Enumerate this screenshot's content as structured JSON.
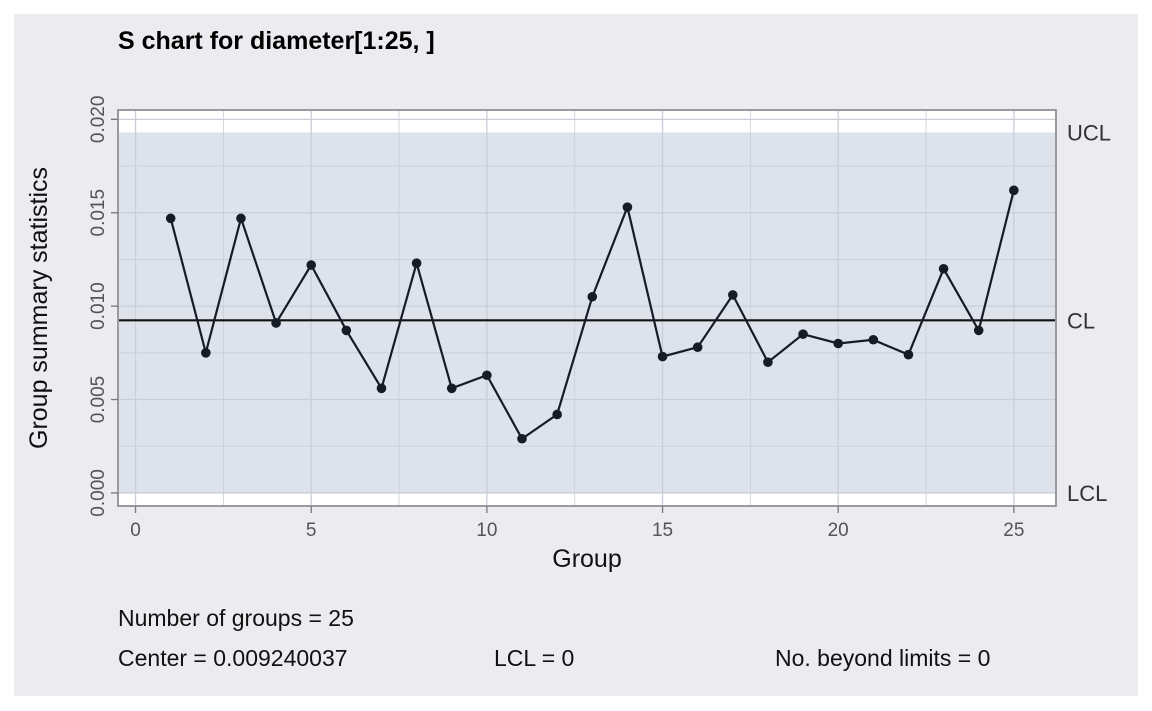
{
  "chart_data": {
    "type": "line",
    "title": "S chart for diameter[1:25, ]",
    "xlabel": "Group",
    "ylabel": "Group summary statistics",
    "xlim": [
      -0.5,
      26.2
    ],
    "ylim": [
      -0.0007,
      0.0205
    ],
    "x_ticks": [
      0,
      5,
      10,
      15,
      20,
      25
    ],
    "x_tick_labels": [
      "0",
      "5",
      "10",
      "15",
      "20",
      "25"
    ],
    "y_ticks": [
      0.0,
      0.005,
      0.01,
      0.015,
      0.02
    ],
    "y_tick_labels": [
      "0.000",
      "0.005",
      "0.010",
      "0.015",
      "0.020"
    ],
    "grid": true,
    "x": [
      1,
      2,
      3,
      4,
      5,
      6,
      7,
      8,
      9,
      10,
      11,
      12,
      13,
      14,
      15,
      16,
      17,
      18,
      19,
      20,
      21,
      22,
      23,
      24,
      25
    ],
    "values": [
      0.0147,
      0.0075,
      0.0147,
      0.0091,
      0.0122,
      0.0087,
      0.0056,
      0.0123,
      0.0056,
      0.0063,
      0.0029,
      0.0042,
      0.0105,
      0.0153,
      0.0073,
      0.0078,
      0.0106,
      0.007,
      0.0085,
      0.008,
      0.0082,
      0.0074,
      0.012,
      0.0087,
      0.0162
    ],
    "center": 0.009240037,
    "ucl": 0.0193,
    "lcl": 0,
    "limit_labels": {
      "ucl": "UCL",
      "cl": "CL",
      "lcl": "LCL"
    },
    "colors": {
      "panel_bg": "#ebebf0",
      "plot_bg": "#ffffff",
      "limits_band": "#dde2eb",
      "line": "#161b26",
      "center_line": "#111111",
      "frame": "#9a9a9a",
      "grid": "#c9ced8"
    }
  },
  "stats": {
    "groups": "Number of groups = 25",
    "center": "Center = 0.009240037",
    "lcl": "LCL = 0",
    "beyond": "No. beyond limits = 0"
  }
}
